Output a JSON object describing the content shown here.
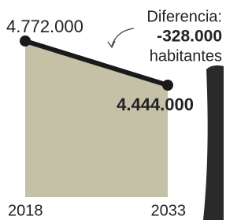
{
  "chart_data": {
    "type": "area",
    "categories": [
      "2018",
      "2033"
    ],
    "values": [
      4772000,
      4444000
    ],
    "value_labels": [
      "4.772.000",
      "4.444.000"
    ],
    "color": "#c5c1a6",
    "line_color": "#1a1a1a",
    "annotations": [
      "Diferencia:",
      "-328.000",
      "habitantes"
    ]
  }
}
